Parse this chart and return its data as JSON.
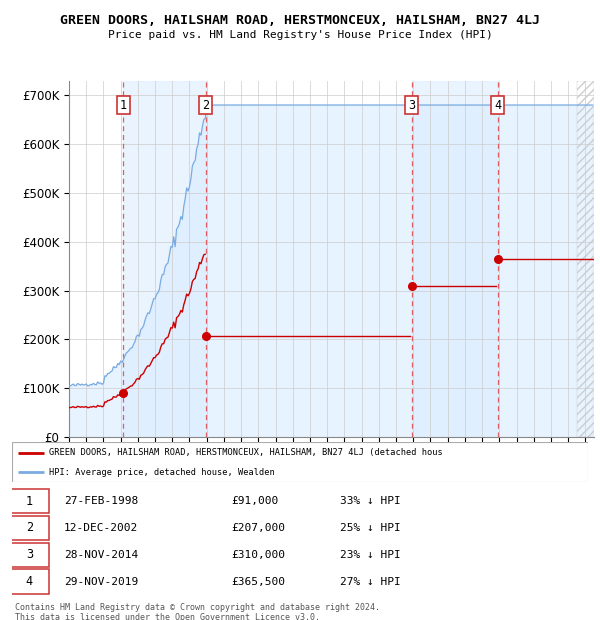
{
  "title": "GREEN DOORS, HAILSHAM ROAD, HERSTMONCEUX, HAILSHAM, BN27 4LJ",
  "subtitle": "Price paid vs. HM Land Registry's House Price Index (HPI)",
  "xlim_start": 1995.0,
  "xlim_end": 2025.5,
  "ylim": [
    0,
    730000
  ],
  "yticks": [
    0,
    100000,
    200000,
    300000,
    400000,
    500000,
    600000,
    700000
  ],
  "ytick_labels": [
    "£0",
    "£100K",
    "£200K",
    "£300K",
    "£400K",
    "£500K",
    "£600K",
    "£700K"
  ],
  "sale_dates": [
    1998.15,
    2002.94,
    2014.91,
    2019.91
  ],
  "sale_prices": [
    91000,
    207000,
    310000,
    365500
  ],
  "sale_labels": [
    "1",
    "2",
    "3",
    "4"
  ],
  "red_line_color": "#cc0000",
  "blue_line_color": "#7aabe0",
  "blue_fill_color": "#ddeeff",
  "sale_vline_color": "#dd4444",
  "grid_color": "#cccccc",
  "background_color": "#ffffff",
  "legend_label_red": "GREEN DOORS, HAILSHAM ROAD, HERSTMONCEUX, HAILSHAM, BN27 4LJ (detached hous",
  "legend_label_blue": "HPI: Average price, detached house, Wealden",
  "table_data": [
    [
      "1",
      "27-FEB-1998",
      "£91,000",
      "33% ↓ HPI"
    ],
    [
      "2",
      "12-DEC-2002",
      "£207,000",
      "25% ↓ HPI"
    ],
    [
      "3",
      "28-NOV-2014",
      "£310,000",
      "23% ↓ HPI"
    ],
    [
      "4",
      "29-NOV-2019",
      "£365,500",
      "27% ↓ HPI"
    ]
  ],
  "footer": "Contains HM Land Registry data © Crown copyright and database right 2024.\nThis data is licensed under the Open Government Licence v3.0."
}
